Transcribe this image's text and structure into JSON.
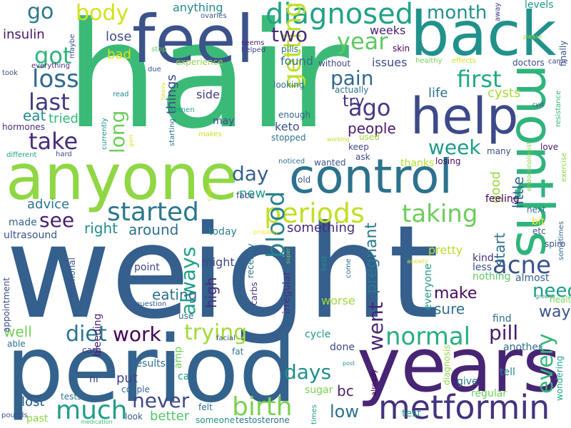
{
  "words": [
    {
      "text": "weight",
      "color": "#355f8d"
    },
    {
      "text": "hair",
      "color": "#3aba76"
    },
    {
      "text": "period",
      "color": "#33638d"
    },
    {
      "text": "anyone",
      "color": "#8fd744"
    },
    {
      "text": "back",
      "color": "#21918c"
    },
    {
      "text": "feel",
      "color": "#3b528b"
    },
    {
      "text": "years",
      "color": "#482475"
    },
    {
      "text": "control",
      "color": "#2c728e"
    },
    {
      "text": "months",
      "color": "#2fb47c"
    },
    {
      "text": "help",
      "color": "#3e4989"
    },
    {
      "text": "metformin",
      "color": "#46327e"
    },
    {
      "text": "diagnosed",
      "color": "#20a386"
    },
    {
      "text": "periods",
      "color": "#c2df23"
    },
    {
      "text": "birth",
      "color": "#7ad151"
    },
    {
      "text": "started",
      "color": "#2a788e"
    },
    {
      "text": "taking",
      "color": "#6ccd5a"
    },
    {
      "text": "normal",
      "color": "#28ae80"
    },
    {
      "text": "much",
      "color": "#1f9e89"
    },
    {
      "text": "trying",
      "color": "#a0da39"
    },
    {
      "text": "acne",
      "color": "#3b528b"
    },
    {
      "text": "getting",
      "color": "#bddf26"
    },
    {
      "text": "blood",
      "color": "#26828e"
    },
    {
      "text": "loss",
      "color": "#31688e"
    },
    {
      "text": "last",
      "color": "#443a83"
    },
    {
      "text": "take",
      "color": "#472d7b"
    },
    {
      "text": "got",
      "color": "#2fb47c"
    },
    {
      "text": "first",
      "color": "#22a884"
    },
    {
      "text": "ago",
      "color": "#443983"
    },
    {
      "text": "diet",
      "color": "#2b758e"
    },
    {
      "text": "work",
      "color": "#440154"
    },
    {
      "text": "never",
      "color": "#3e4989"
    },
    {
      "text": "days",
      "color": "#228d8d"
    },
    {
      "text": "pill",
      "color": "#481a6c"
    },
    {
      "text": "week",
      "color": "#1e9b8a"
    },
    {
      "text": "long",
      "color": "#6ccd5a"
    },
    {
      "text": "day",
      "color": "#34618d"
    },
    {
      "text": "always",
      "color": "#1fa088"
    },
    {
      "text": "need",
      "color": "#1e9c89"
    },
    {
      "text": "every",
      "color": "#35b779"
    },
    {
      "text": "went",
      "color": "#482878"
    },
    {
      "text": "go",
      "color": "#2a788e"
    },
    {
      "text": "body",
      "color": "#d2e21b"
    },
    {
      "text": "pain",
      "color": "#31688e"
    },
    {
      "text": "month",
      "color": "#21918c"
    },
    {
      "text": "year",
      "color": "#5ec962"
    },
    {
      "text": "two",
      "color": "#472a7a"
    },
    {
      "text": "see",
      "color": "#481f70"
    },
    {
      "text": "low",
      "color": "#2c728e"
    },
    {
      "text": "bc",
      "color": "#482173"
    },
    {
      "text": "lost",
      "color": "#32658e"
    },
    {
      "text": "well",
      "color": "#73d056"
    },
    {
      "text": "make",
      "color": "#460a5d"
    },
    {
      "text": "sure",
      "color": "#2e6e8e"
    },
    {
      "text": "way",
      "color": "#3c508b"
    },
    {
      "text": "pregnant",
      "color": "#2a788e"
    },
    {
      "text": "right",
      "color": "#228c8d"
    },
    {
      "text": "around",
      "color": "#2d708e"
    },
    {
      "text": "high",
      "color": "#472c7a"
    },
    {
      "text": "put",
      "color": "#404588"
    },
    {
      "text": "eating",
      "color": "#2e6f8e"
    },
    {
      "text": "advice",
      "color": "#2c738e"
    },
    {
      "text": "new",
      "color": "#1f9e89"
    },
    {
      "text": "eat",
      "color": "#23898e"
    },
    {
      "text": "tried",
      "color": "#32b67a"
    },
    {
      "text": "good",
      "color": "#98d83e"
    },
    {
      "text": "little",
      "color": "#31688e"
    },
    {
      "text": "start",
      "color": "#2d708e"
    },
    {
      "text": "people",
      "color": "#481b6d"
    },
    {
      "text": "try",
      "color": "#46307e"
    },
    {
      "text": "life",
      "color": "#2d718e"
    },
    {
      "text": "cysts",
      "color": "#a8db34"
    },
    {
      "text": "something",
      "color": "#472c7a"
    },
    {
      "text": "insulin",
      "color": "#481668"
    },
    {
      "text": "lose",
      "color": "#3e4a89"
    },
    {
      "text": "bad",
      "color": "#dde318"
    },
    {
      "text": "weeks",
      "color": "#482071"
    },
    {
      "text": "things",
      "color": "#3e4989"
    },
    {
      "text": "anything",
      "color": "#238a8d"
    },
    {
      "text": "keto",
      "color": "#3a548c"
    },
    {
      "text": "found",
      "color": "#2e6f8e"
    },
    {
      "text": "issues",
      "color": "#3e4989"
    },
    {
      "text": "feeling",
      "color": "#440154"
    },
    {
      "text": "better",
      "color": "#52c569"
    },
    {
      "text": "results",
      "color": "#2d718e"
    },
    {
      "text": "lost",
      "color": "#32658e"
    },
    {
      "text": "pretty",
      "color": "#b5de2b"
    },
    {
      "text": "might",
      "color": "#404588"
    },
    {
      "text": "side",
      "color": "#453781"
    },
    {
      "text": "today",
      "color": "#25848e"
    },
    {
      "text": "made",
      "color": "#34618d"
    },
    {
      "text": "ultrasound",
      "color": "#39558c"
    },
    {
      "text": "done",
      "color": "#3e4989"
    },
    {
      "text": "cycle",
      "color": "#1f968b"
    },
    {
      "text": "worse",
      "color": "#9fda3a"
    },
    {
      "text": "sugar",
      "color": "#7ad151"
    },
    {
      "text": "point",
      "color": "#404588"
    },
    {
      "text": "almost",
      "color": "#33628d"
    },
    {
      "text": "kind",
      "color": "#472d7b"
    },
    {
      "text": "less",
      "color": "#3a548c"
    },
    {
      "text": "nothing",
      "color": "#5cc863"
    },
    {
      "text": "everyone",
      "color": "#1f958b"
    },
    {
      "text": "find",
      "color": "#2d718e"
    },
    {
      "text": "another",
      "color": "#2e6e8e"
    },
    {
      "text": "tell",
      "color": "#24868e"
    },
    {
      "text": "give",
      "color": "#2b748e"
    },
    {
      "text": "regular",
      "color": "#6ece58"
    },
    {
      "text": "test",
      "color": "#1fa188"
    },
    {
      "text": "tests",
      "color": "#2c738e"
    },
    {
      "text": "couple",
      "color": "#32658e"
    },
    {
      "text": "hi",
      "color": "#414487"
    },
    {
      "text": "past",
      "color": "#8bd646"
    },
    {
      "text": "look",
      "color": "#38598c"
    },
    {
      "text": "someone",
      "color": "#21918c"
    },
    {
      "text": "felt",
      "color": "#2f6c8e"
    },
    {
      "text": "testosterone",
      "color": "#2b758e"
    },
    {
      "text": "times",
      "color": "#1e9b8a"
    },
    {
      "text": "pounds",
      "color": "#3b528b"
    },
    {
      "text": "medication",
      "color": "#3aba76"
    },
    {
      "text": "great",
      "color": "#3e4989"
    },
    {
      "text": "fat",
      "color": "#2c738e"
    },
    {
      "text": "facial",
      "color": "#3b528b"
    },
    {
      "text": "use",
      "color": "#2e6e8e"
    },
    {
      "text": "question",
      "color": "#39568c"
    },
    {
      "text": "carb",
      "color": "#46337f"
    },
    {
      "text": "bleeding",
      "color": "#482374"
    },
    {
      "text": "appointment",
      "color": "#3e4a89"
    },
    {
      "text": "able",
      "color": "#2c728e"
    },
    {
      "text": "hormonal",
      "color": "#39558c"
    },
    {
      "text": "carbs",
      "color": "#443b84"
    },
    {
      "text": "irregular",
      "color": "#46337f"
    },
    {
      "text": "recently",
      "color": "#2c728e"
    },
    {
      "text": "super",
      "color": "#6ccd5a"
    },
    {
      "text": "best",
      "color": "#21918c"
    },
    {
      "text": "anxiety",
      "color": "#d8e219"
    },
    {
      "text": "come",
      "color": "#2b758e"
    },
    {
      "text": "already",
      "color": "#440154"
    },
    {
      "text": "post",
      "color": "#21918c"
    },
    {
      "text": "diagnosis",
      "color": "#8fd744"
    },
    {
      "text": "wondering",
      "color": "#1fa187"
    },
    {
      "text": "growth",
      "color": "#1f968b"
    },
    {
      "text": "health",
      "color": "#7ad151"
    },
    {
      "text": "sometimes",
      "color": "#32648e"
    },
    {
      "text": "spiro",
      "color": "#3c4f8a"
    },
    {
      "text": "next",
      "color": "#2d708e"
    },
    {
      "text": "bit",
      "color": "#fde725"
    },
    {
      "text": "etc",
      "color": "#3c508b"
    },
    {
      "text": "love",
      "color": "#481769"
    },
    {
      "text": "exercise",
      "color": "#8bd646"
    },
    {
      "text": "endocrinologist",
      "color": "#7fd34e"
    },
    {
      "text": "many",
      "color": "#3c4f8a"
    },
    {
      "text": "losing",
      "color": "#46085c"
    },
    {
      "text": "thanks",
      "color": "#b5de2b"
    },
    {
      "text": "ask",
      "color": "#3f4889"
    },
    {
      "text": "keep",
      "color": "#404688"
    },
    {
      "text": "used",
      "color": "#9bd93c"
    },
    {
      "text": "working",
      "color": "#bddf26"
    },
    {
      "text": "stopped",
      "color": "#2b758e"
    },
    {
      "text": "enough",
      "color": "#32658e"
    },
    {
      "text": "noticed",
      "color": "#2d718e"
    },
    {
      "text": "wanted",
      "color": "#3b528b"
    },
    {
      "text": "old",
      "color": "#3b528b"
    },
    {
      "text": "face",
      "color": "#3e4989"
    },
    {
      "text": "cause",
      "color": "#c8e020"
    },
    {
      "text": "probably",
      "color": "#fde725"
    },
    {
      "text": "seems",
      "color": "#482475"
    },
    {
      "text": "helped",
      "color": "#404588"
    },
    {
      "text": "ovaries",
      "color": "#3b528b"
    },
    {
      "text": "pills",
      "color": "#2e6e8e"
    },
    {
      "text": "without",
      "color": "#3e4989"
    },
    {
      "text": "skin",
      "color": "#440154"
    },
    {
      "text": "healthy",
      "color": "#75d054"
    },
    {
      "text": "effects",
      "color": "#d0e11c"
    },
    {
      "text": "doctors",
      "color": "#3e4989"
    },
    {
      "text": "came",
      "color": "#3e4989"
    },
    {
      "text": "finally",
      "color": "#3a548c"
    },
    {
      "text": "levels",
      "color": "#1f998a"
    },
    {
      "text": "away",
      "color": "#46337f"
    },
    {
      "text": "please",
      "color": "#95d840"
    },
    {
      "text": "maybe",
      "color": "#3b528b"
    },
    {
      "text": "everything",
      "color": "#46307e"
    },
    {
      "text": "took",
      "color": "#3e4989"
    },
    {
      "text": "hormones",
      "color": "#472d7b"
    },
    {
      "text": "different",
      "color": "#20a386"
    },
    {
      "text": "hard",
      "color": "#3e4989"
    },
    {
      "text": "read",
      "color": "#24868e"
    },
    {
      "text": "currently",
      "color": "#21918c"
    },
    {
      "text": "gain",
      "color": "#dde318"
    },
    {
      "text": "due",
      "color": "#3b528b"
    },
    {
      "text": "experience",
      "color": "#8fd744"
    },
    {
      "text": "stop",
      "color": "#6ccd5a"
    },
    {
      "text": "heavy",
      "color": "#d2e21b"
    },
    {
      "text": "women",
      "color": "#1f9e89"
    },
    {
      "text": "starting",
      "color": "#2c728e"
    },
    {
      "text": "makes",
      "color": "#cde11d"
    },
    {
      "text": "may",
      "color": "#3e4989"
    },
    {
      "text": "looking",
      "color": "#2e6e8e"
    },
    {
      "text": "actually",
      "color": "#2c728e"
    },
    {
      "text": "resistance",
      "color": "#35b779"
    },
    {
      "text": "cyst",
      "color": "#443983"
    },
    {
      "text": "ca",
      "color": "#1f958b"
    },
    {
      "text": "amp",
      "color": "#6ece58"
    }
  ]
}
